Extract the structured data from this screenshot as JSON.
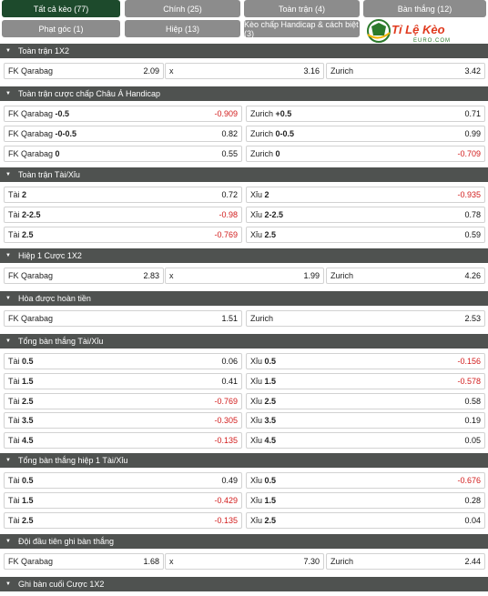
{
  "tabs": [
    {
      "label": "Tất cả kèo (77)",
      "active": true
    },
    {
      "label": "Chính (25)"
    },
    {
      "label": "Toàn trận (4)"
    },
    {
      "label": "Bàn thắng (12)"
    },
    {
      "label": "Phạt góc (1)"
    },
    {
      "label": "Hiệp (13)"
    },
    {
      "label": "Kèo chấp Handicap & cách biệt (3)"
    }
  ],
  "logo": {
    "text": "Tỉ Lệ Kèo",
    "sub": "EURO.COM"
  },
  "sections": [
    {
      "title": "Toàn trận 1X2",
      "type": "3col",
      "rows": [
        [
          {
            "name": "FK Qarabag",
            "odd": "2.09"
          },
          {
            "name": "x",
            "odd": "3.16"
          },
          {
            "name": "Zurich",
            "odd": "3.42"
          }
        ]
      ]
    },
    {
      "title": "Toàn trận cược chấp Châu Á Handicap",
      "type": "2col",
      "rows": [
        [
          {
            "name": "FK Qarabag",
            "line": "-0.5",
            "odd": "-0.909"
          },
          {
            "name": "Zurich",
            "line": "+0.5",
            "odd": "0.71"
          }
        ],
        [
          {
            "name": "FK Qarabag",
            "line": "-0-0.5",
            "odd": "0.82"
          },
          {
            "name": "Zurich",
            "line": "0-0.5",
            "odd": "0.99"
          }
        ],
        [
          {
            "name": "FK Qarabag",
            "line": "0",
            "odd": "0.55"
          },
          {
            "name": "Zurich",
            "line": "0",
            "odd": "-0.709"
          }
        ]
      ]
    },
    {
      "title": "Toàn trận Tài/Xỉu",
      "type": "2col",
      "rows": [
        [
          {
            "name": "Tài",
            "line": "2",
            "odd": "0.72"
          },
          {
            "name": "Xỉu",
            "line": "2",
            "odd": "-0.935"
          }
        ],
        [
          {
            "name": "Tài",
            "line": "2-2.5",
            "odd": "-0.98"
          },
          {
            "name": "Xỉu",
            "line": "2-2.5",
            "odd": "0.78"
          }
        ],
        [
          {
            "name": "Tài",
            "line": "2.5",
            "odd": "-0.769"
          },
          {
            "name": "Xỉu",
            "line": "2.5",
            "odd": "0.59"
          }
        ]
      ]
    },
    {
      "title": "Hiệp 1 Cược 1X2",
      "type": "3col",
      "rows": [
        [
          {
            "name": "FK Qarabag",
            "odd": "2.83"
          },
          {
            "name": "x",
            "odd": "1.99"
          },
          {
            "name": "Zurich",
            "odd": "4.26"
          }
        ]
      ]
    },
    {
      "title": "Hòa được hoàn tiền",
      "type": "2col",
      "rows": [
        [
          {
            "name": "FK Qarabag",
            "odd": "1.51"
          },
          {
            "name": "Zurich",
            "odd": "2.53"
          }
        ]
      ]
    },
    {
      "title": "Tổng bàn thắng Tài/Xỉu",
      "type": "2col",
      "rows": [
        [
          {
            "name": "Tài",
            "line": "0.5",
            "odd": "0.06"
          },
          {
            "name": "Xỉu",
            "line": "0.5",
            "odd": "-0.156"
          }
        ],
        [
          {
            "name": "Tài",
            "line": "1.5",
            "odd": "0.41"
          },
          {
            "name": "Xỉu",
            "line": "1.5",
            "odd": "-0.578"
          }
        ],
        [
          {
            "name": "Tài",
            "line": "2.5",
            "odd": "-0.769"
          },
          {
            "name": "Xỉu",
            "line": "2.5",
            "odd": "0.58"
          }
        ],
        [
          {
            "name": "Tài",
            "line": "3.5",
            "odd": "-0.305"
          },
          {
            "name": "Xỉu",
            "line": "3.5",
            "odd": "0.19"
          }
        ],
        [
          {
            "name": "Tài",
            "line": "4.5",
            "odd": "-0.135"
          },
          {
            "name": "Xỉu",
            "line": "4.5",
            "odd": "0.05"
          }
        ]
      ]
    },
    {
      "title": "Tổng bàn thắng hiệp 1 Tài/Xỉu",
      "type": "2col",
      "rows": [
        [
          {
            "name": "Tài",
            "line": "0.5",
            "odd": "0.49"
          },
          {
            "name": "Xỉu",
            "line": "0.5",
            "odd": "-0.676"
          }
        ],
        [
          {
            "name": "Tài",
            "line": "1.5",
            "odd": "-0.429"
          },
          {
            "name": "Xỉu",
            "line": "1.5",
            "odd": "0.28"
          }
        ],
        [
          {
            "name": "Tài",
            "line": "2.5",
            "odd": "-0.135"
          },
          {
            "name": "Xỉu",
            "line": "2.5",
            "odd": "0.04"
          }
        ]
      ]
    },
    {
      "title": "Đội đầu tiên ghi bàn thắng",
      "type": "3col",
      "rows": [
        [
          {
            "name": "FK Qarabag",
            "odd": "1.68"
          },
          {
            "name": "x",
            "odd": "7.30"
          },
          {
            "name": "Zurich",
            "odd": "2.44"
          }
        ]
      ]
    },
    {
      "title": "Ghi bàn cuối Cược 1X2",
      "type": "3col",
      "rows": []
    }
  ]
}
